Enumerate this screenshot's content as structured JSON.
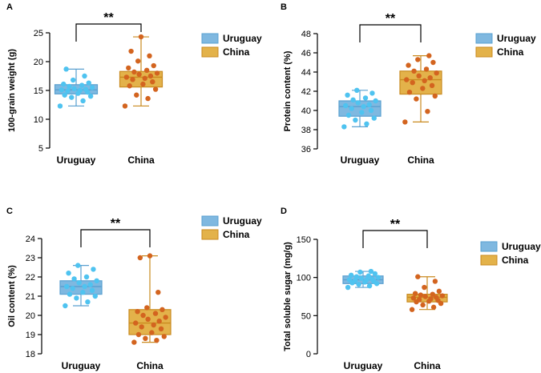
{
  "colors": {
    "uruguay_box": "#7fb8e0",
    "uruguay_box_stroke": "#5aa0d0",
    "uruguay_point": "#4fc3f0",
    "china_box": "#e3b24a",
    "china_box_stroke": "#c98a1f",
    "china_point": "#d3641f",
    "axis": "#000000"
  },
  "chart_data": [
    {
      "type": "box",
      "panel_label": "A",
      "ylabel": "100-grain weight  (g)",
      "ylim": [
        5,
        25
      ],
      "yticks": [
        "5",
        "10",
        "15",
        "20",
        "25"
      ],
      "categories": [
        "Uruguay",
        "China"
      ],
      "legend": [
        "Uruguay",
        "China"
      ],
      "significance": "**",
      "series": [
        {
          "name": "Uruguay",
          "min": 12.3,
          "q1": 14.4,
          "median": 15.1,
          "q3": 16.0,
          "max": 18.7,
          "points": [
            12.3,
            13.2,
            13.8,
            14.0,
            14.2,
            14.5,
            14.7,
            14.9,
            15.0,
            15.1,
            15.2,
            15.3,
            15.5,
            15.7,
            15.9,
            16.1,
            16.3,
            16.8,
            17.5,
            18.7
          ]
        },
        {
          "name": "China",
          "min": 12.3,
          "q1": 15.6,
          "median": 17.3,
          "q3": 18.3,
          "max": 24.3,
          "points": [
            12.3,
            13.6,
            14.2,
            15.2,
            15.8,
            16.1,
            16.5,
            16.9,
            17.1,
            17.3,
            17.5,
            17.8,
            18.0,
            18.2,
            18.5,
            18.9,
            19.3,
            20.1,
            21.0,
            21.8,
            24.3
          ]
        }
      ]
    },
    {
      "type": "box",
      "panel_label": "B",
      "ylabel": "Protein content  (%)",
      "ylim": [
        36,
        48
      ],
      "yticks": [
        "36",
        "38",
        "40",
        "42",
        "44",
        "46",
        "48"
      ],
      "categories": [
        "Uruguay",
        "China"
      ],
      "legend": [
        "Uruguay",
        "China"
      ],
      "significance": "**",
      "series": [
        {
          "name": "Uruguay",
          "min": 38.3,
          "q1": 39.4,
          "median": 40.4,
          "q3": 41.0,
          "max": 42.1,
          "points": [
            38.3,
            38.6,
            39.0,
            39.2,
            39.5,
            39.8,
            40.0,
            40.2,
            40.4,
            40.5,
            40.6,
            40.8,
            41.0,
            41.1,
            41.3,
            41.6,
            41.8,
            42.1
          ]
        },
        {
          "name": "China",
          "min": 38.8,
          "q1": 41.7,
          "median": 43.2,
          "q3": 44.1,
          "max": 45.7,
          "points": [
            38.8,
            39.9,
            41.2,
            41.5,
            41.9,
            42.3,
            42.6,
            42.9,
            43.1,
            43.2,
            43.4,
            43.6,
            43.9,
            44.1,
            44.3,
            44.7,
            45.0,
            45.3,
            45.7
          ]
        }
      ]
    },
    {
      "type": "box",
      "panel_label": "C",
      "ylabel": "Oil content  (%)",
      "ylim": [
        18,
        24
      ],
      "yticks": [
        "18",
        "19",
        "20",
        "21",
        "22",
        "23",
        "24"
      ],
      "categories": [
        "Uruguay",
        "China"
      ],
      "legend": [
        "Uruguay",
        "China"
      ],
      "significance": "**",
      "series": [
        {
          "name": "Uruguay",
          "min": 20.5,
          "q1": 21.1,
          "median": 21.5,
          "q3": 21.8,
          "max": 22.6,
          "points": [
            20.5,
            20.7,
            20.9,
            21.0,
            21.1,
            21.2,
            21.3,
            21.4,
            21.5,
            21.5,
            21.6,
            21.7,
            21.8,
            21.9,
            22.0,
            22.2,
            22.4,
            22.6
          ]
        },
        {
          "name": "China",
          "min": 18.6,
          "q1": 19.0,
          "median": 19.6,
          "q3": 20.3,
          "max": 23.1,
          "points": [
            18.6,
            18.7,
            18.8,
            18.9,
            19.0,
            19.1,
            19.3,
            19.4,
            19.5,
            19.6,
            19.7,
            19.8,
            19.9,
            20.0,
            20.1,
            20.2,
            20.3,
            20.4,
            21.2,
            23.0,
            23.1
          ]
        }
      ]
    },
    {
      "type": "box",
      "panel_label": "D",
      "ylabel": "Total soluble sugar  (mg/g)",
      "ylim": [
        0,
        150
      ],
      "yticks": [
        "0",
        "50",
        "100",
        "150"
      ],
      "categories": [
        "Uruguay",
        "China"
      ],
      "legend": [
        "Uruguay",
        "China"
      ],
      "significance": "**",
      "series": [
        {
          "name": "Uruguay",
          "min": 87,
          "q1": 92,
          "median": 97,
          "q3": 102,
          "max": 108,
          "points": [
            87,
            89,
            91,
            92,
            93,
            94,
            95,
            96,
            97,
            97,
            98,
            99,
            100,
            101,
            102,
            103,
            105,
            107,
            108
          ]
        },
        {
          "name": "China",
          "min": 58,
          "q1": 68,
          "median": 74,
          "q3": 78,
          "max": 101,
          "points": [
            58,
            61,
            64,
            66,
            68,
            69,
            70,
            71,
            72,
            73,
            74,
            75,
            76,
            77,
            78,
            79,
            82,
            87,
            95,
            101
          ]
        }
      ]
    }
  ]
}
